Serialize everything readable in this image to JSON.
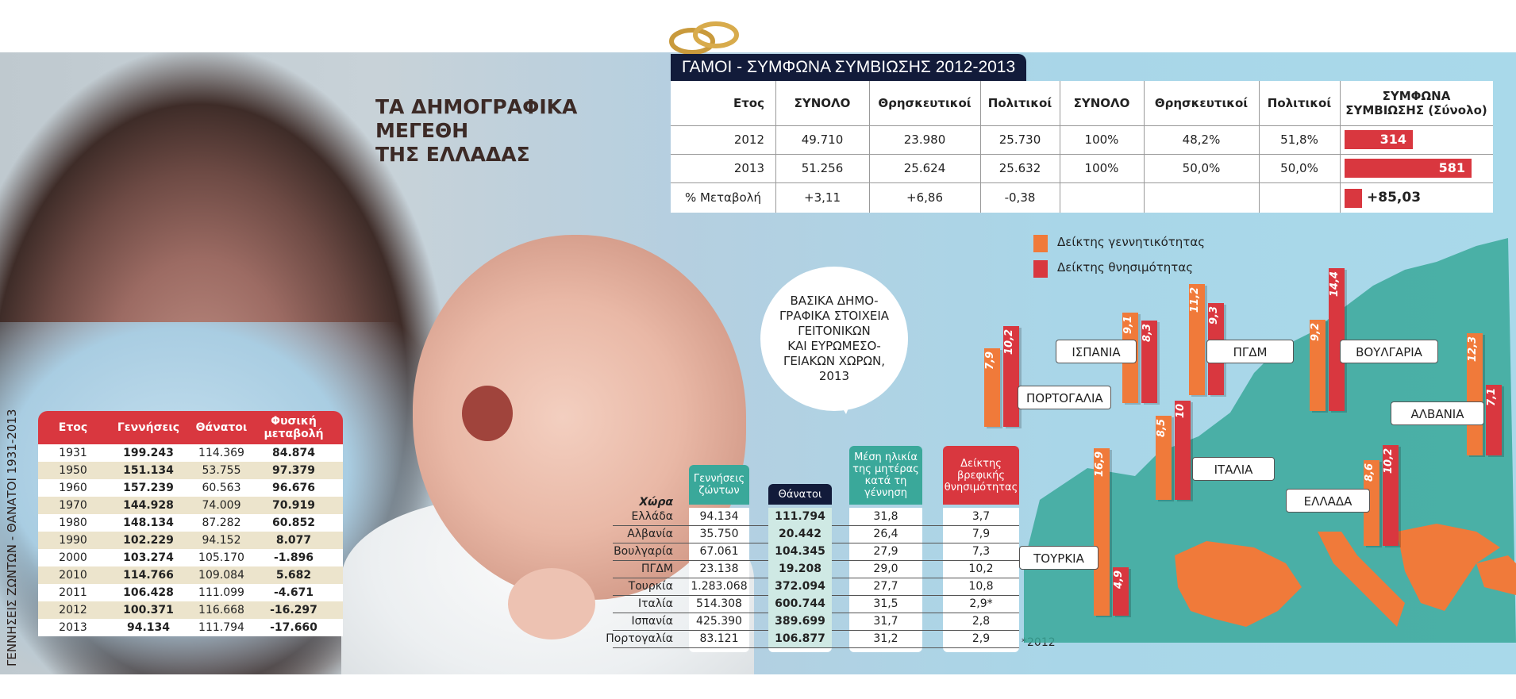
{
  "main_title": "ΤΑ ΔΗΜΟΓΡΑΦΙΚΑ\nΜΕΓΕΘΗ\nΤΗΣ ΕΛΛΑΔΑΣ",
  "side_label": "ΓΕΝΝΗΣΕΙΣ ΖΩΝΤΩΝ - ΘΑΝΑΤΟΙ 1931-2013",
  "colors": {
    "accent_red": "#d9373f",
    "accent_orange": "#f07a3a",
    "teal": "#3aa89a",
    "navy": "#121b3a",
    "beige": "#ece4cc"
  },
  "chart_data": [
    {
      "type": "table",
      "title": "ΓΕΝΝΗΣΕΙΣ ΖΩΝΤΩΝ - ΘΑΝΑΤΟΙ 1931-2013",
      "columns": [
        "Ετος",
        "Γεννήσεις",
        "Θάνατοι",
        "Φυσική μεταβολή"
      ],
      "rows": [
        [
          "1931",
          "199.243",
          "114.369",
          "84.874"
        ],
        [
          "1950",
          "151.134",
          "53.755",
          "97.379"
        ],
        [
          "1960",
          "157.239",
          "60.563",
          "96.676"
        ],
        [
          "1970",
          "144.928",
          "74.009",
          "70.919"
        ],
        [
          "1980",
          "148.134",
          "87.282",
          "60.852"
        ],
        [
          "1990",
          "102.229",
          "94.152",
          "8.077"
        ],
        [
          "2000",
          "103.274",
          "105.170",
          "-1.896"
        ],
        [
          "2010",
          "114.766",
          "109.084",
          "5.682"
        ],
        [
          "2011",
          "106.428",
          "111.099",
          "-4.671"
        ],
        [
          "2012",
          "100.371",
          "116.668",
          "-16.297"
        ],
        [
          "2013",
          "94.134",
          "111.794",
          "-17.660"
        ]
      ]
    },
    {
      "type": "table",
      "title": "ΓΑΜΟΙ - ΣΥΜΦΩΝΑ ΣΥΜΒΙΩΣΗΣ 2012-2013",
      "columns": [
        "Ετος",
        "ΣΥΝΟΛΟ",
        "Θρησκευτικοί",
        "Πολιτικοί",
        "ΣΥΝΟΛΟ",
        "Θρησκευτικοί",
        "Πολιτικοί",
        "ΣΥΜΦΩΝΑ ΣΥΜΒΙΩΣΗΣ (Σύνολο)"
      ],
      "header_last_line1": "ΣΥΜΦΩΝΑ",
      "header_last_line2": "ΣΥΜΒΙΩΣΗΣ (Σύνολο)",
      "rows": [
        [
          "2012",
          "49.710",
          "23.980",
          "25.730",
          "100%",
          "48,2%",
          "51,8%",
          "314"
        ],
        [
          "2013",
          "51.256",
          "25.624",
          "25.632",
          "100%",
          "50,0%",
          "50,0%",
          "581"
        ],
        [
          "% Μεταβολή",
          "+3,11",
          "+6,86",
          "-0,38",
          "",
          "",
          "",
          "+85,03"
        ]
      ],
      "pact_values": [
        314,
        581
      ]
    },
    {
      "type": "table",
      "title": "ΒΑΣΙΚΑ ΔΗΜΟΓΡΑΦΙΚΑ ΣΤΟΙΧΕΙΑ ΓΕΙΤΟΝΙΚΩΝ ΚΑΙ ΕΥΡΩΜΕΣΟΓΕΙΑΚΩΝ ΧΩΡΩΝ, 2013",
      "row_header": "Χώρα",
      "columns": [
        "Γεννήσεις ζώντων",
        "Θάνατοι",
        "Μέση ηλικία της μητέρας κατά τη γέννηση",
        "Δείκτης βρεφικής θνησιμότητας"
      ],
      "rows": [
        [
          "Ελλάδα",
          "94.134",
          "111.794",
          "31,8",
          "3,7"
        ],
        [
          "Αλβανία",
          "35.750",
          "20.442",
          "26,4",
          "7,9"
        ],
        [
          "Βουλγαρία",
          "67.061",
          "104.345",
          "27,9",
          "7,3"
        ],
        [
          "ΠΓΔΜ",
          "23.138",
          "19.208",
          "29,0",
          "10,2"
        ],
        [
          "Τουρκία",
          "1.283.068",
          "372.094",
          "27,7",
          "10,8"
        ],
        [
          "Ιταλία",
          "514.308",
          "600.744",
          "31,5",
          "2,9*"
        ],
        [
          "Ισπανία",
          "425.390",
          "389.699",
          "31,7",
          "2,8"
        ],
        [
          "Πορτογαλία",
          "83.121",
          "106.877",
          "31,2",
          "2,9"
        ]
      ],
      "footnote": "*2012"
    },
    {
      "type": "bar",
      "series": [
        {
          "name": "Δείκτης γεννητικότητας",
          "color": "#f07a3a"
        },
        {
          "name": "Δείκτης θνησιμότητας",
          "color": "#d9373f"
        }
      ],
      "categories": [
        "ΠΟΡΤΟΓΑΛΙΑ",
        "ΙΣΠΑΝΙΑ",
        "ΠΓΔΜ",
        "ΒΟΥΛΓΑΡΙΑ",
        "ΑΛΒΑΝΙΑ",
        "ΙΤΑΛΙΑ",
        "ΕΛΛΑΔΑ",
        "ΤΟΥΡΚΙΑ"
      ],
      "values": [
        [
          "7,9",
          "10,2"
        ],
        [
          "9,1",
          "8,3"
        ],
        [
          "11,2",
          "9,3"
        ],
        [
          "9,2",
          "14,4"
        ],
        [
          "12,3",
          "7,1"
        ],
        [
          "8,5",
          "10"
        ],
        [
          "8,6",
          "10,2"
        ],
        [
          "16,9",
          "4,9"
        ]
      ]
    }
  ],
  "bubble_text": "ΒΑΣΙΚΑ ΔΗΜΟ-\nΓΡΑΦΙΚΑ ΣΤΟΙΧΕΙΑ\nΓΕΙΤΟΝΙΚΩΝ\nΚΑΙ ΕΥΡΩΜΕΣΟ-\nΓΕΙΑΚΩΝ ΧΩΡΩΝ,\n2013"
}
